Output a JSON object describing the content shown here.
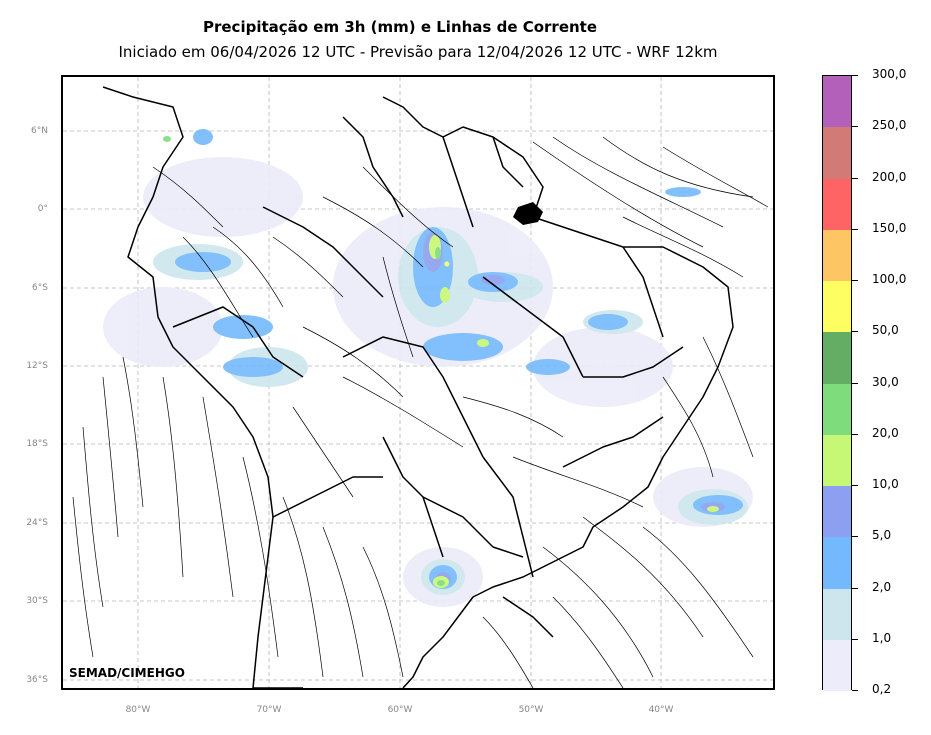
{
  "header": {
    "title": "Precipitação em 3h (mm) e Linhas de Corrente",
    "subtitle": "Iniciado em 06/04/2026 12 UTC - Previsão para 12/04/2026 12 UTC - WRF 12km"
  },
  "map": {
    "credit": "SEMAD/CIMEHGO",
    "lat_labels": [
      "6°N",
      "0°",
      "6°S",
      "12°S",
      "18°S",
      "24°S",
      "30°S",
      "36°S"
    ],
    "lon_labels": [
      "80°W",
      "70°W",
      "60°W",
      "50°W",
      "40°W"
    ],
    "colors": {
      "grid": "#b5b5b5",
      "land_border": "#000000",
      "streamline": "#000000"
    }
  },
  "colorbar": {
    "labels": [
      "0,2",
      "1,0",
      "2,0",
      "5,0",
      "10,0",
      "20,0",
      "30,0",
      "50,0",
      "100,0",
      "150,0",
      "200,0",
      "250,0",
      "300,0"
    ],
    "colors": [
      "#ececfa",
      "#cde6ee",
      "#74b9fd",
      "#8c9ff0",
      "#c7f875",
      "#7fdc7c",
      "#64ad64",
      "#fefe62",
      "#fec564",
      "#fe6464",
      "#d27b76",
      "#b260b9"
    ]
  }
}
